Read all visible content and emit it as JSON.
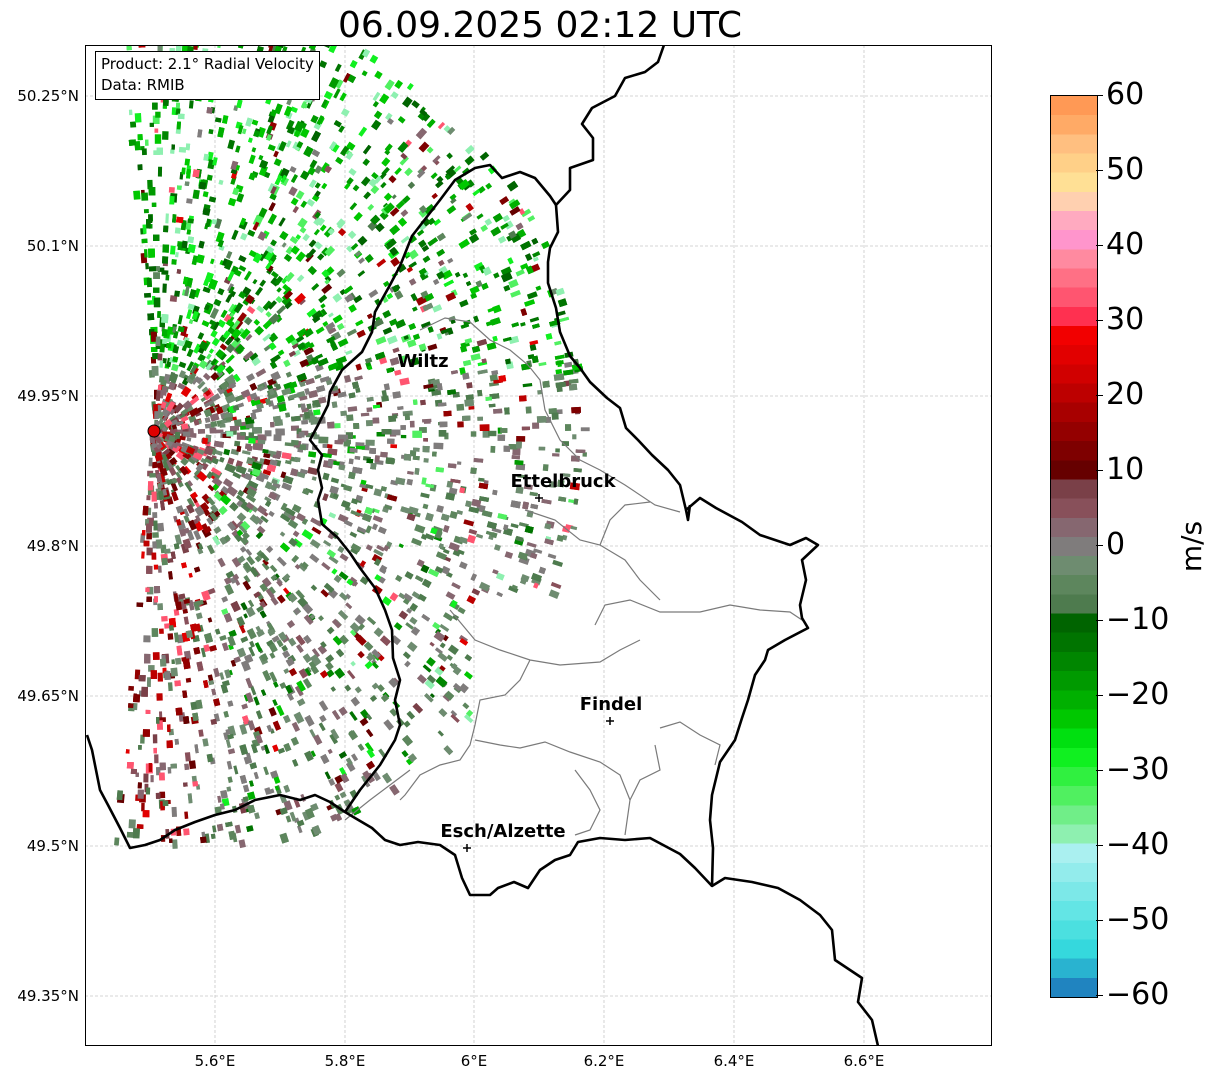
{
  "title": "06.09.2025 02:12 UTC",
  "info": {
    "product": "Product: 2.1° Radial Velocity",
    "data_source": "Data: RMIB"
  },
  "map": {
    "lon_range": [
      5.4,
      6.8
    ],
    "lat_range": [
      49.3,
      50.3
    ],
    "grid": true,
    "y_ticks": [
      "50.25°N",
      "50.1°N",
      "49.95°N",
      "49.8°N",
      "49.65°N",
      "49.5°N",
      "49.35°N"
    ],
    "x_ticks": [
      "5.6°E",
      "5.8°E",
      "6°E",
      "6.2°E",
      "6.4°E",
      "6.6°E"
    ],
    "radar_site": {
      "lon": 5.505,
      "lat": 49.915
    },
    "cities": [
      {
        "name": "Wiltz",
        "lon": 5.93,
        "lat": 49.97
      },
      {
        "name": "Ettelbruck",
        "lon": 6.1,
        "lat": 49.85
      },
      {
        "name": "Findel",
        "lon": 6.21,
        "lat": 49.627
      },
      {
        "name": "Esch/Alzette",
        "lon": 5.99,
        "lat": 49.5
      }
    ]
  },
  "colorbar": {
    "unit": "m/s",
    "min": -60,
    "max": 60,
    "ticks": [
      "60",
      "50",
      "40",
      "30",
      "20",
      "10",
      "0",
      "−10",
      "−20",
      "−30",
      "−40",
      "−50",
      "−60"
    ],
    "colors": [
      "#2084c0",
      "#29b3d0",
      "#35d8dd",
      "#4be0e0",
      "#63e5e5",
      "#7ce8e8",
      "#93ecec",
      "#aaf0f0",
      "#8ef0b0",
      "#70ee88",
      "#50f060",
      "#30f040",
      "#10f020",
      "#00e010",
      "#00c800",
      "#00b000",
      "#009a00",
      "#008600",
      "#007400",
      "#006400",
      "#4e7b4e",
      "#5d865d",
      "#6e8c70",
      "#7f7c7c",
      "#866770",
      "#88505a",
      "#7a4048",
      "#660000",
      "#7e0000",
      "#940000",
      "#a80000",
      "#bd0000",
      "#d10000",
      "#e20000",
      "#f20000",
      "#ff3050",
      "#ff5570",
      "#ff7085",
      "#ff8aa0",
      "#ff95cc",
      "#ffaac0",
      "#ffd0b0",
      "#ffe095",
      "#ffd088",
      "#ffbf80",
      "#ffaa66",
      "#ff9955"
    ]
  }
}
